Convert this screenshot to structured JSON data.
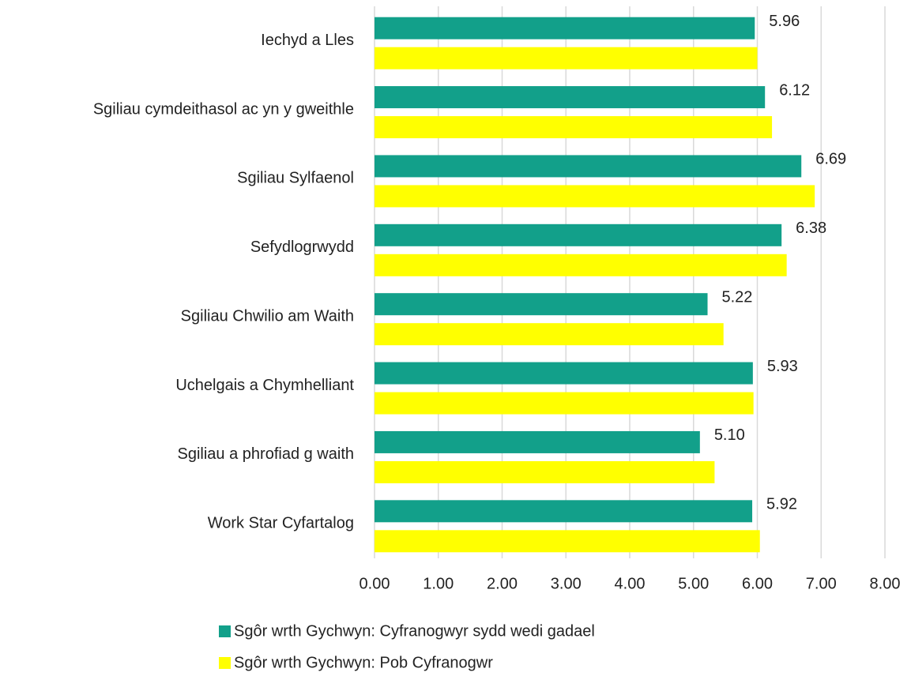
{
  "chart_data": {
    "type": "bar",
    "orientation": "horizontal",
    "categories": [
      "Iechyd a Lles",
      "Sgiliau cymdeithasol ac yn y gweithle",
      "Sgiliau Sylfaenol",
      "Sefydlogrwydd",
      "Sgiliau Chwilio am Waith",
      "Uchelgais a Chymhelliant",
      "Sgiliau a phrofiad g waith",
      "Work Star Cyfartalog"
    ],
    "series": [
      {
        "name": "Sgôr wrth Gychwyn: Cyfranogwyr sydd wedi gadael",
        "color": "#12a08a",
        "values": [
          5.96,
          6.12,
          6.69,
          6.38,
          5.22,
          5.93,
          5.1,
          5.92
        ],
        "value_labels": [
          "5.96",
          "6.12",
          "6.69",
          "6.38",
          "5.22",
          "5.93",
          "5.10",
          "5.92"
        ]
      },
      {
        "name": "Sgôr wrth Gychwyn: Pob Cyfranogwr",
        "color": "#ffff00",
        "values": [
          6.0,
          6.23,
          6.9,
          6.46,
          5.47,
          5.94,
          5.33,
          6.04
        ]
      }
    ],
    "xlim": [
      0,
      8
    ],
    "xticks": [
      {
        "value": 0,
        "label": "0.00"
      },
      {
        "value": 1,
        "label": "1.00"
      },
      {
        "value": 2,
        "label": "2.00"
      },
      {
        "value": 3,
        "label": "3.00"
      },
      {
        "value": 4,
        "label": "4.00"
      },
      {
        "value": 5,
        "label": "5.00"
      },
      {
        "value": 6,
        "label": "6.00"
      },
      {
        "value": 7,
        "label": "7.00"
      },
      {
        "value": 8,
        "label": "8.00"
      }
    ],
    "grid": true
  }
}
